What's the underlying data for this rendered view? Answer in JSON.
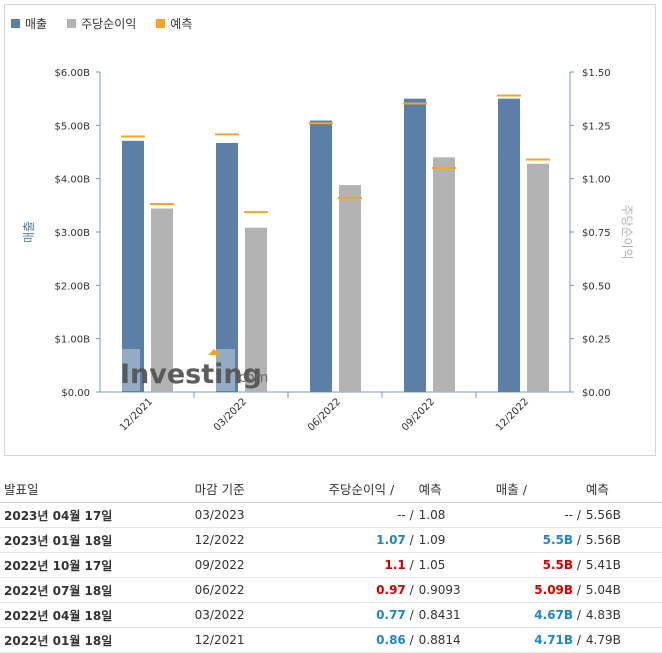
{
  "legend": [
    {
      "label": "매출",
      "color": "#5b7fa6"
    },
    {
      "label": "주당순이익",
      "color": "#b3b3b3"
    },
    {
      "label": "예측",
      "color": "#f5a623"
    }
  ],
  "chart_data": {
    "type": "bar",
    "categories": [
      "12/2021",
      "03/2022",
      "06/2022",
      "09/2022",
      "12/2022"
    ],
    "series": [
      {
        "name": "매출",
        "axis": "left",
        "color": "#5b7fa6",
        "values": [
          4.71,
          4.67,
          5.09,
          5.5,
          5.5
        ]
      },
      {
        "name": "주당순이익",
        "axis": "right",
        "color": "#b3b3b3",
        "values": [
          0.86,
          0.77,
          0.97,
          1.1,
          1.07
        ]
      },
      {
        "name": "예측",
        "kind": "marker",
        "color": "#f5a623",
        "revenue_values": [
          4.79,
          4.83,
          5.04,
          5.41,
          5.56
        ],
        "eps_values": [
          0.8814,
          0.8431,
          0.9093,
          1.05,
          1.09
        ]
      }
    ],
    "ylabel": "매출",
    "y2label": "주당순이익",
    "ylim": [
      0,
      6
    ],
    "y2lim": [
      0,
      1.5
    ],
    "yticks": [
      "$0.00",
      "$1.00B",
      "$2.00B",
      "$3.00B",
      "$4.00B",
      "$5.00B",
      "$6.00B"
    ],
    "y2ticks": [
      "$0.00",
      "$0.25",
      "$0.50",
      "$0.75",
      "$1.00",
      "$1.25",
      "$1.50"
    ],
    "grid": false,
    "legend_position": "top-left",
    "watermark": "Investing.com"
  },
  "table": {
    "headers": {
      "date": "발표일",
      "period": "마감 기준",
      "eps": "주당순이익",
      "eps_fc": "예측",
      "rev": "매출",
      "rev_fc": "예측"
    },
    "separator": "/",
    "rows": [
      {
        "date": "2023년 04월 17일",
        "period": "03/2023",
        "eps": "--",
        "eps_fc": "1.08",
        "rev": "--",
        "rev_fc": "5.56B",
        "eps_status": "neutral",
        "rev_status": "neutral"
      },
      {
        "date": "2023년 01월 18일",
        "period": "12/2022",
        "eps": "1.07",
        "eps_fc": "1.09",
        "rev": "5.5B",
        "rev_fc": "5.56B",
        "eps_status": "up",
        "rev_status": "up"
      },
      {
        "date": "2022년 10월 17일",
        "period": "09/2022",
        "eps": "1.1",
        "eps_fc": "1.05",
        "rev": "5.5B",
        "rev_fc": "5.41B",
        "eps_status": "down",
        "rev_status": "down"
      },
      {
        "date": "2022년 07월 18일",
        "period": "06/2022",
        "eps": "0.97",
        "eps_fc": "0.9093",
        "rev": "5.09B",
        "rev_fc": "5.04B",
        "eps_status": "down",
        "rev_status": "down"
      },
      {
        "date": "2022년 04월 18일",
        "period": "03/2022",
        "eps": "0.77",
        "eps_fc": "0.8431",
        "rev": "4.67B",
        "rev_fc": "4.83B",
        "eps_status": "up",
        "rev_status": "up"
      },
      {
        "date": "2022년 01월 18일",
        "period": "12/2021",
        "eps": "0.86",
        "eps_fc": "0.8814",
        "rev": "4.71B",
        "rev_fc": "4.79B",
        "eps_status": "up",
        "rev_status": "up"
      }
    ]
  }
}
